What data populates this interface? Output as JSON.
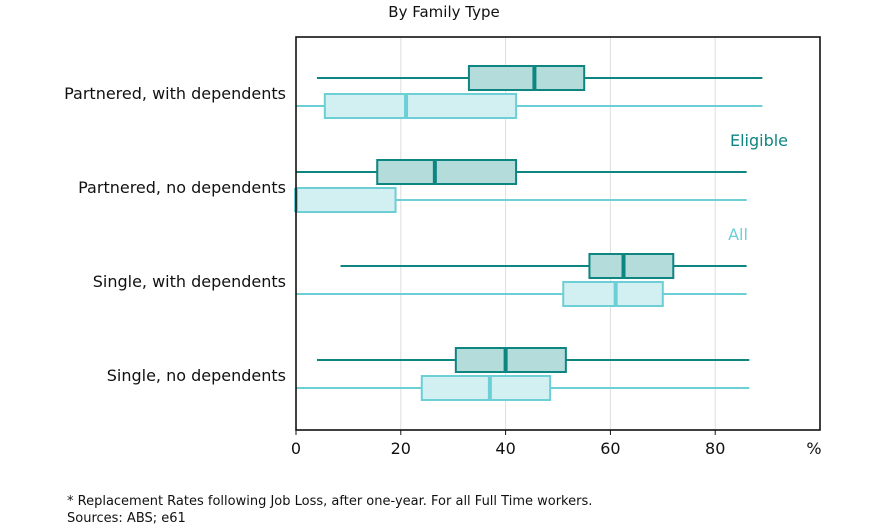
{
  "chart_data": {
    "type": "boxplot",
    "title": "By Family Type",
    "xlabel": "",
    "ylabel": "",
    "unit_label": "%",
    "xlim": [
      0,
      100
    ],
    "xticks": [
      0,
      20,
      40,
      60,
      80
    ],
    "grid": "vertical",
    "categories": [
      "Partnered, with dependents",
      "Partnered, no dependents",
      "Single, with dependents",
      "Single, no dependents"
    ],
    "series": [
      {
        "name": "Eligible",
        "color": "#0e8580",
        "fill": "#b3dcdb",
        "boxes": [
          {
            "min": 4,
            "q1": 33,
            "median": 45.5,
            "q3": 55,
            "max": 89
          },
          {
            "min": 0,
            "q1": 15.5,
            "median": 26.5,
            "q3": 42,
            "max": 86
          },
          {
            "min": 8.5,
            "q1": 56,
            "median": 62.5,
            "q3": 72,
            "max": 86
          },
          {
            "min": 4,
            "q1": 30.5,
            "median": 40,
            "q3": 51.5,
            "max": 86.5
          }
        ]
      },
      {
        "name": "All",
        "color": "#6dcfd6",
        "fill": "#d2eff1",
        "boxes": [
          {
            "min": 0,
            "q1": 5.5,
            "median": 21,
            "q3": 42,
            "max": 89
          },
          {
            "min": 0,
            "q1": 0,
            "median": 0,
            "q3": 19,
            "max": 86
          },
          {
            "min": 0,
            "q1": 51,
            "median": 61,
            "q3": 70,
            "max": 86
          },
          {
            "min": 0,
            "q1": 24,
            "median": 37,
            "q3": 48.5,
            "max": 86.5
          }
        ]
      }
    ],
    "legend_placement": "inside-right"
  },
  "footnote": "* Replacement Rates following Job Loss, after one-year. For all Full Time workers.",
  "sources": "Sources: ABS; e61"
}
